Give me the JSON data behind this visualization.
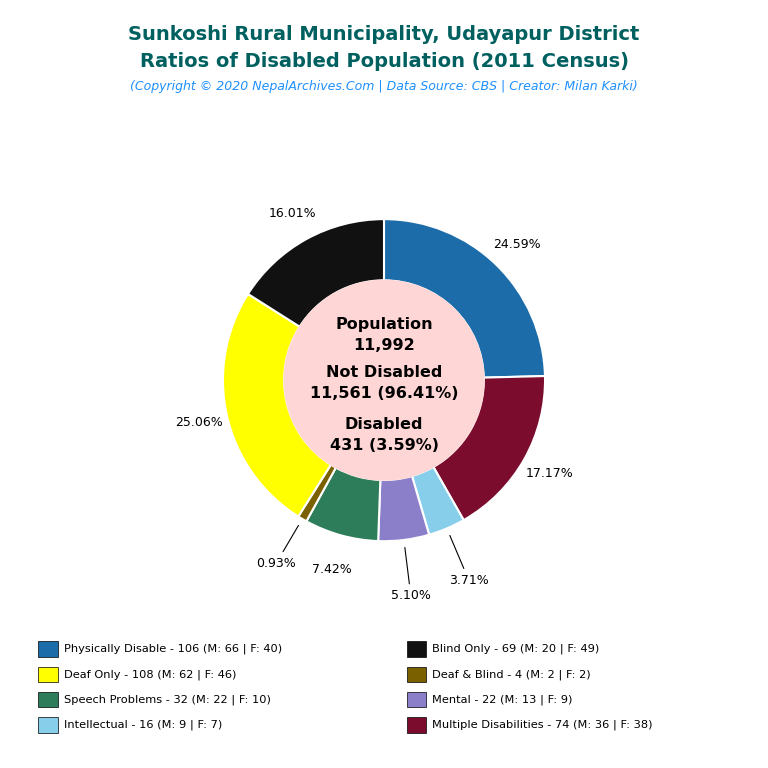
{
  "title_line1": "Sunkoshi Rural Municipality, Udayapur District",
  "title_line2": "Ratios of Disabled Population (2011 Census)",
  "subtitle": "(Copyright © 2020 NepalArchives.Com | Data Source: CBS | Creator: Milan Karki)",
  "title_color": "#006060",
  "subtitle_color": "#1E90FF",
  "center_bg": "#FFD6D6",
  "slices": [
    {
      "label": "Physically Disable - 106 (M: 66 | F: 40)",
      "value": 106,
      "color": "#1B6CA8",
      "pct": "24.59%"
    },
    {
      "label": "Multiple Disabilities - 74 (M: 36 | F: 38)",
      "value": 74,
      "color": "#7B0C2E",
      "pct": "17.17%"
    },
    {
      "label": "Intellectual - 16 (M: 9 | F: 7)",
      "value": 16,
      "color": "#87CEEB",
      "pct": "3.71%"
    },
    {
      "label": "Mental - 22 (M: 13 | F: 9)",
      "value": 22,
      "color": "#8B7FCA",
      "pct": "5.10%"
    },
    {
      "label": "Speech Problems - 32 (M: 22 | F: 10)",
      "value": 32,
      "color": "#2E7D5A",
      "pct": "7.42%"
    },
    {
      "label": "Deaf & Blind - 4 (M: 2 | F: 2)",
      "value": 4,
      "color": "#7B6000",
      "pct": "0.93%"
    },
    {
      "label": "Deaf Only - 108 (M: 62 | F: 46)",
      "value": 108,
      "color": "#FFFF00",
      "pct": "25.06%"
    },
    {
      "label": "Blind Only - 69 (M: 20 | F: 49)",
      "value": 69,
      "color": "#111111",
      "pct": "16.01%"
    }
  ],
  "legend_items": [
    {
      "label": "Physically Disable - 106 (M: 66 | F: 40)",
      "color": "#1B6CA8"
    },
    {
      "label": "Deaf Only - 108 (M: 62 | F: 46)",
      "color": "#FFFF00"
    },
    {
      "label": "Speech Problems - 32 (M: 22 | F: 10)",
      "color": "#2E7D5A"
    },
    {
      "label": "Intellectual - 16 (M: 9 | F: 7)",
      "color": "#87CEEB"
    },
    {
      "label": "Blind Only - 69 (M: 20 | F: 49)",
      "color": "#111111"
    },
    {
      "label": "Deaf & Blind - 4 (M: 2 | F: 2)",
      "color": "#7B6000"
    },
    {
      "label": "Mental - 22 (M: 13 | F: 9)",
      "color": "#8B7FCA"
    },
    {
      "label": "Multiple Disabilities - 74 (M: 36 | F: 38)",
      "color": "#7B0C2E"
    }
  ],
  "pct_label_radii": {
    "24.59%": 1.18,
    "17.17%": 1.18,
    "3.71%": 1.35,
    "5.10%": 1.35,
    "7.42%": 1.22,
    "0.93%": 1.32,
    "25.06%": 1.18,
    "16.01%": 1.18
  }
}
